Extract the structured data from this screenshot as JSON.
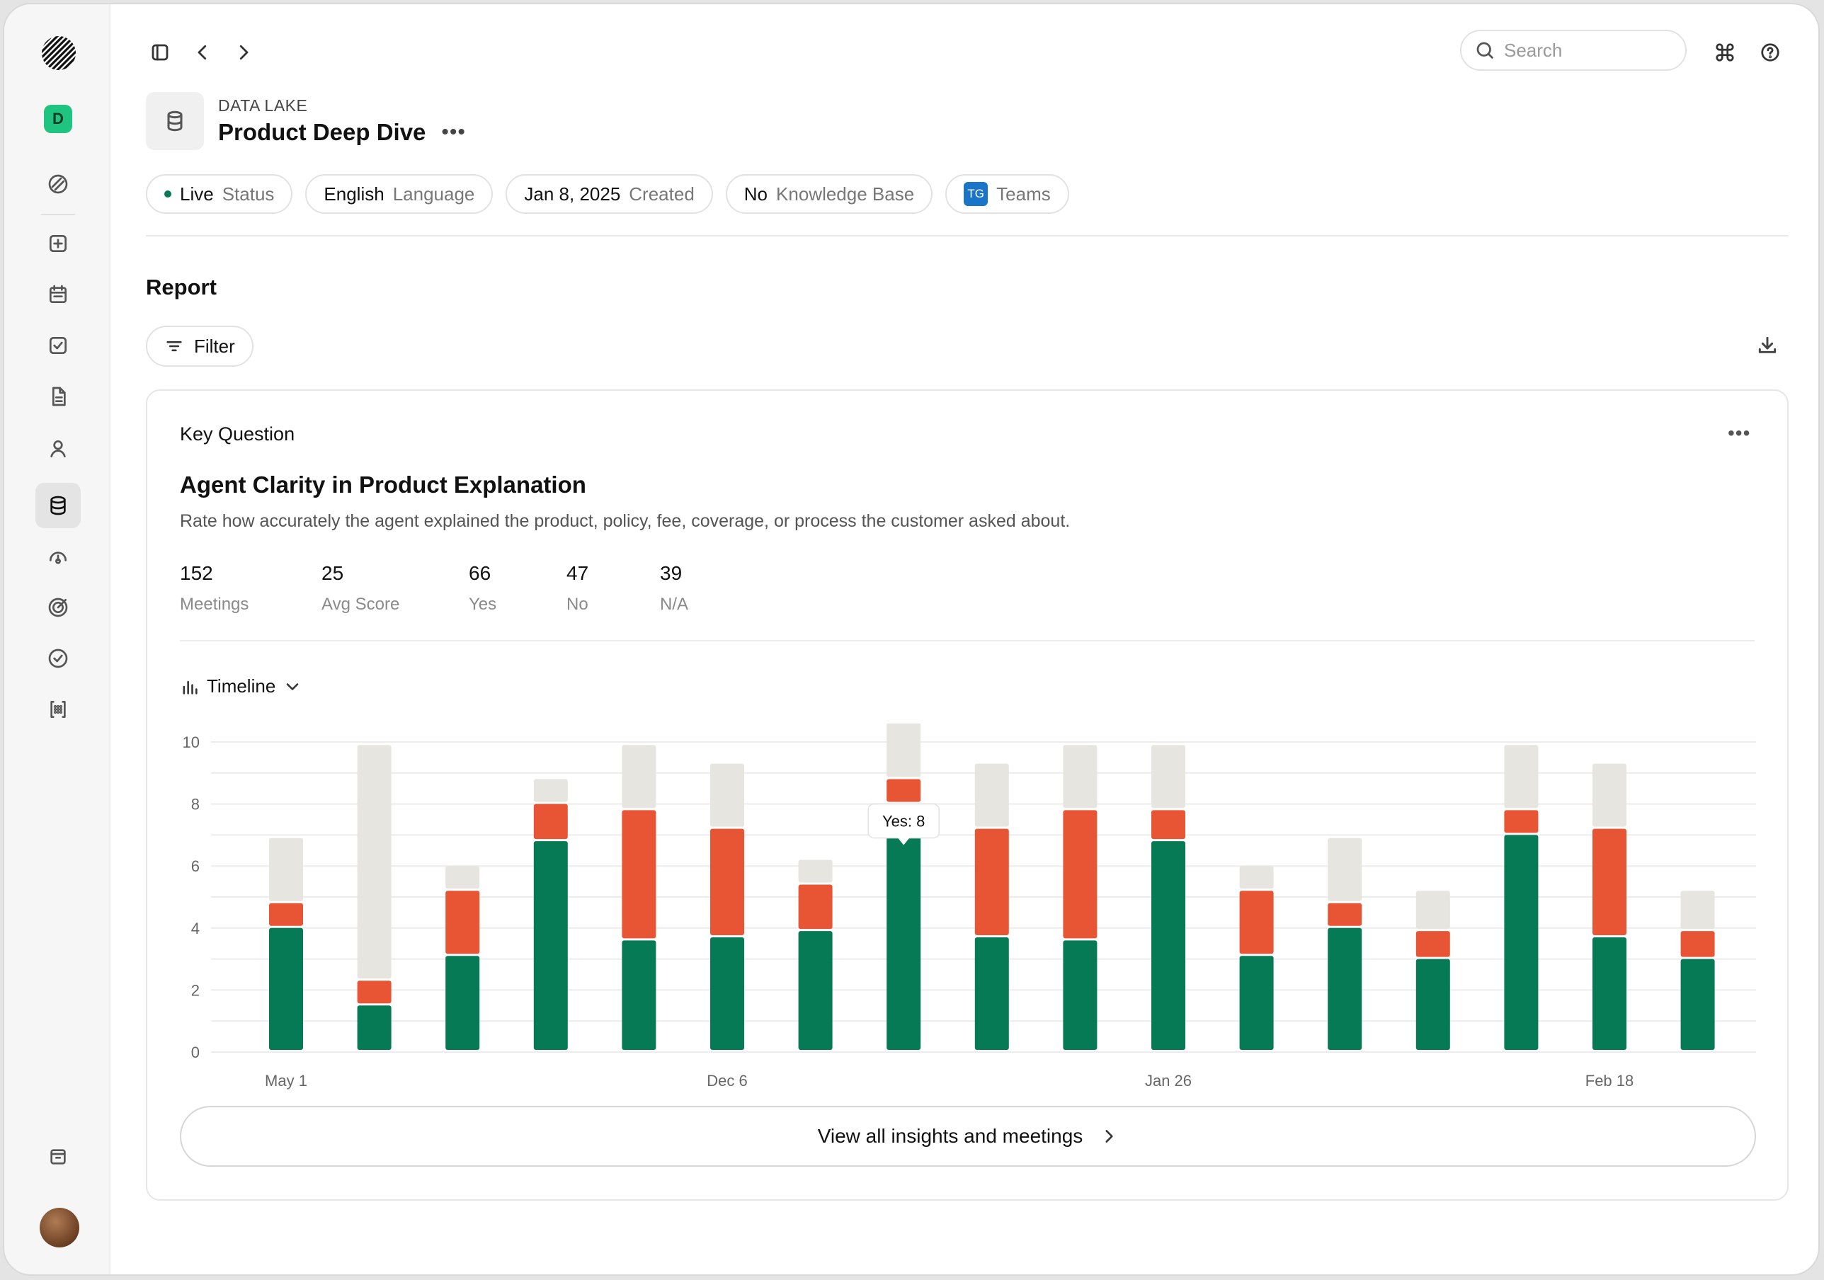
{
  "breadcrumb": {
    "eyebrow": "DATA LAKE"
  },
  "page": {
    "title": "Product Deep Dive"
  },
  "search": {
    "placeholder": "Search"
  },
  "sidebar": {
    "workspace_badge": "D"
  },
  "chips": [
    {
      "value": "Live",
      "key": "Status"
    },
    {
      "value": "English",
      "key": "Language"
    },
    {
      "value": "Jan 8, 2025",
      "key": "Created"
    },
    {
      "value": "No",
      "key": "Knowledge Base"
    },
    {
      "badge": "TG",
      "key": "Teams"
    }
  ],
  "report": {
    "heading": "Report",
    "filter_label": "Filter"
  },
  "card": {
    "label": "Key Question",
    "title": "Agent Clarity in Product Explanation",
    "description": "Rate how accurately the agent explained the product, policy, fee, coverage, or process the customer asked about.",
    "stats": [
      {
        "value": "152",
        "label": "Meetings"
      },
      {
        "value": "25",
        "label": "Avg Score"
      },
      {
        "value": "66",
        "label": "Yes"
      },
      {
        "value": "47",
        "label": "No"
      },
      {
        "value": "39",
        "label": "N/A"
      }
    ],
    "view_selector": "Timeline",
    "view_all_label": "View all insights and meetings"
  },
  "colors": {
    "yes": "#067a55",
    "no": "#e85535",
    "na": "#e6e5df",
    "grid": "#ececec"
  },
  "chart_data": {
    "type": "bar",
    "stacked": true,
    "ylim": [
      0,
      10
    ],
    "yticks": [
      0,
      2,
      4,
      6,
      8,
      10
    ],
    "x_tick_labels": [
      {
        "index": 0,
        "label": "May 1"
      },
      {
        "index": 5,
        "label": "Dec 6"
      },
      {
        "index": 10,
        "label": "Jan 26"
      },
      {
        "index": 15,
        "label": "Feb 18"
      }
    ],
    "series": [
      {
        "key": "yes",
        "values": [
          4,
          1.5,
          3.1,
          6.8,
          3.6,
          3.7,
          3.9,
          8,
          3.7,
          3.6,
          6.8,
          3.1,
          4,
          3,
          7,
          3.7,
          3
        ]
      },
      {
        "key": "no",
        "values": [
          0.8,
          0.8,
          2.1,
          1.2,
          4.2,
          3.5,
          1.5,
          0.8,
          3.5,
          4.2,
          1,
          2.1,
          0.8,
          0.9,
          0.8,
          3.5,
          0.9
        ]
      },
      {
        "key": "na",
        "values": [
          2.1,
          7.6,
          0.8,
          0.8,
          2.1,
          2.1,
          0.8,
          2.1,
          2.1,
          2.1,
          2.1,
          0.8,
          2.1,
          1.3,
          2.1,
          2.1,
          1.3
        ]
      }
    ],
    "tooltip": {
      "index": 7,
      "text": "Yes: 8"
    }
  }
}
